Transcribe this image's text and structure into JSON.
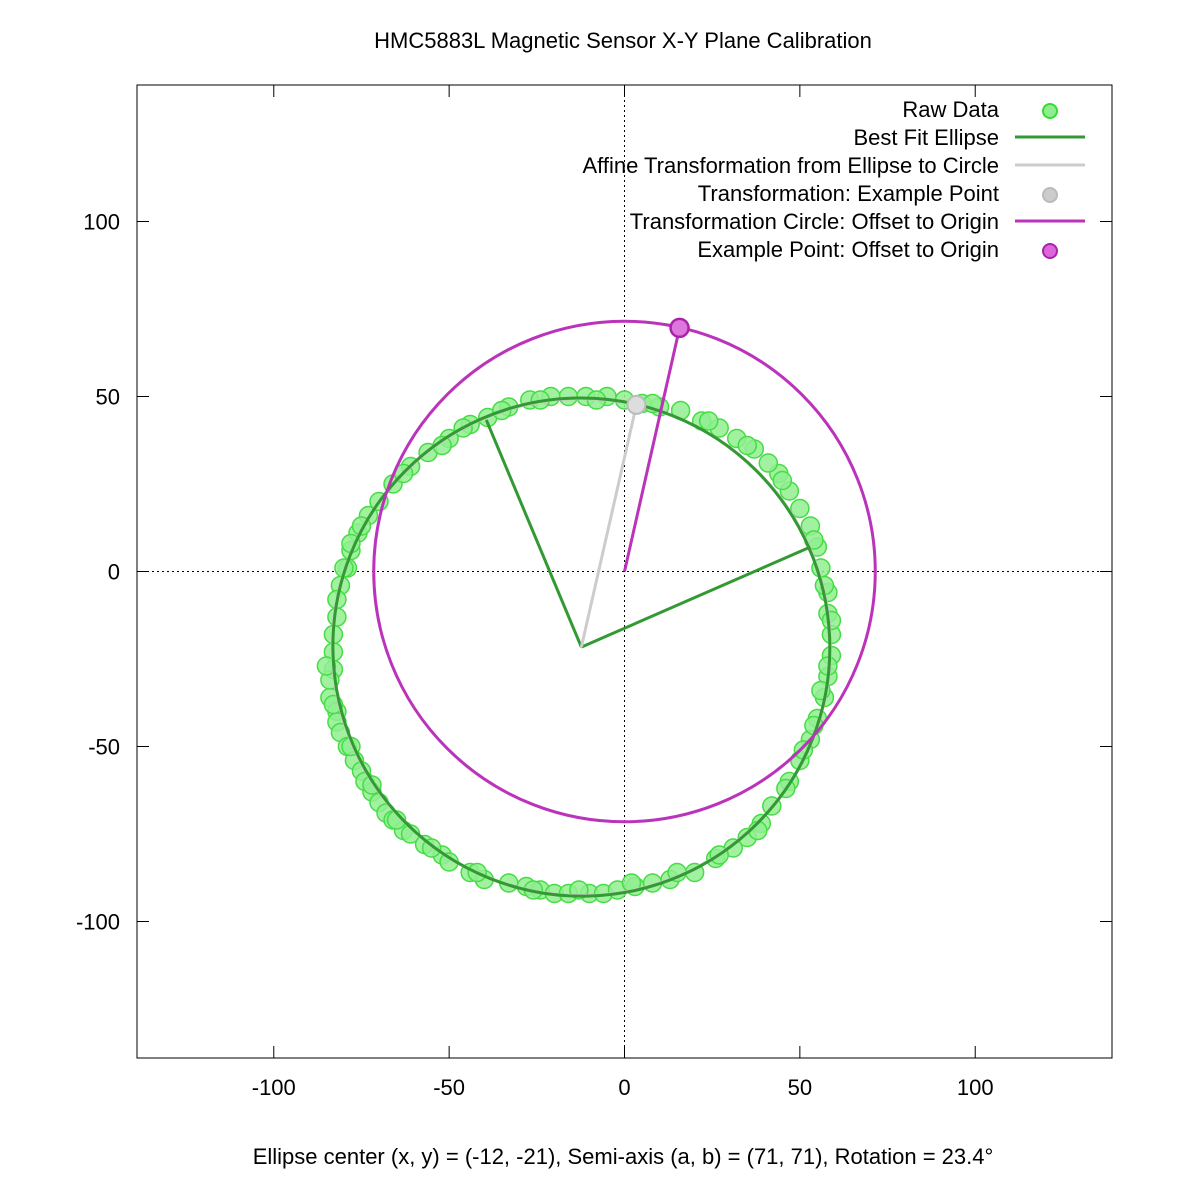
{
  "chart_data": {
    "type": "scatter",
    "title": "HMC5883L Magnetic Sensor X-Y Plane Calibration",
    "xlabel": "Ellipse center (x, y) = (-12, -21), Semi-axis (a, b) = (71, 71), Rotation = 23.4°",
    "ylabel": "",
    "xlim": [
      -139,
      139
    ],
    "ylim": [
      -139,
      139
    ],
    "xticks": [
      -100,
      -50,
      0,
      50,
      100
    ],
    "yticks": [
      -100,
      -50,
      0,
      50,
      100
    ],
    "xtick_labels": [
      "-100",
      "-50",
      "0",
      "50",
      "100"
    ],
    "ytick_labels": [
      "-100",
      "-50",
      "0",
      "50",
      "100"
    ],
    "zero_axes": true,
    "legend_position": "top-right",
    "legend": [
      {
        "label": "Raw Data",
        "kind": "point",
        "color": "#90ee90",
        "edge": "#33dd33"
      },
      {
        "label": "Best Fit Ellipse",
        "kind": "line",
        "color": "#339933"
      },
      {
        "label": "Affine Transformation from Ellipse to Circle",
        "kind": "line",
        "color": "#cccccc"
      },
      {
        "label": "Transformation: Example Point",
        "kind": "point",
        "color": "#cccccc",
        "edge": "#bbbbbb"
      },
      {
        "label": "Transformation Circle: Offset to Origin",
        "kind": "line",
        "color": "#bb33bb"
      },
      {
        "label": "Example Point: Offset to Origin",
        "kind": "point",
        "color": "#dd66dd",
        "edge": "#aa22aa"
      }
    ],
    "ellipse": {
      "cx": -12,
      "cy": -21,
      "rx": 71,
      "ry": 71,
      "rotation_deg": 23.4,
      "fit_center": [
        -12.3,
        -21.6
      ],
      "fit_axes": [
        70.8,
        71.2
      ],
      "semi_axis_end_a": [
        53,
        7
      ],
      "semi_axis_end_b": [
        -39.4,
        43.3
      ]
    },
    "transformation_line": {
      "from": [
        -12.3,
        -21.6
      ],
      "to": [
        3.4,
        47.6
      ]
    },
    "transformation_point": [
      3.4,
      47.6
    ],
    "offset_circle": {
      "cx": 0,
      "cy": 0,
      "r": 71.5
    },
    "offset_line": {
      "from": [
        0,
        0
      ],
      "to": [
        15.7,
        69.6
      ]
    },
    "offset_point": [
      15.7,
      69.6
    ],
    "raw_data": [
      [
        -83,
        -28
      ],
      [
        -84,
        -36
      ],
      [
        -82,
        -40
      ],
      [
        -82,
        -43
      ],
      [
        -81,
        -46
      ],
      [
        -79,
        -50
      ],
      [
        -77,
        -54
      ],
      [
        -75,
        -57
      ],
      [
        -74,
        -60
      ],
      [
        -72,
        -63
      ],
      [
        -70,
        -66
      ],
      [
        -68,
        -69
      ],
      [
        -66,
        -71
      ],
      [
        -63,
        -74
      ],
      [
        -61,
        -75
      ],
      [
        -57,
        -78
      ],
      [
        -52,
        -81
      ],
      [
        -50,
        -83
      ],
      [
        -44,
        -86
      ],
      [
        -40,
        -88
      ],
      [
        -33,
        -89
      ],
      [
        -28,
        -90
      ],
      [
        -24,
        -91
      ],
      [
        -20,
        -92
      ],
      [
        -16,
        -92
      ],
      [
        -10,
        -92
      ],
      [
        -6,
        -92
      ],
      [
        -2,
        -91
      ],
      [
        3,
        -90
      ],
      [
        8,
        -89
      ],
      [
        13,
        -88
      ],
      [
        20,
        -86
      ],
      [
        26,
        -82
      ],
      [
        31,
        -79
      ],
      [
        35,
        -76
      ],
      [
        39,
        -72
      ],
      [
        42,
        -67
      ],
      [
        47,
        -60
      ],
      [
        50,
        -54
      ],
      [
        53,
        -48
      ],
      [
        55,
        -42
      ],
      [
        57,
        -36
      ],
      [
        58,
        -30
      ],
      [
        59,
        -24
      ],
      [
        59,
        -18
      ],
      [
        58,
        -12
      ],
      [
        58,
        -6
      ],
      [
        56,
        1
      ],
      [
        55,
        7
      ],
      [
        53,
        13
      ],
      [
        50,
        18
      ],
      [
        47,
        23
      ],
      [
        44,
        28
      ],
      [
        41,
        31
      ],
      [
        37,
        35
      ],
      [
        32,
        38
      ],
      [
        27,
        41
      ],
      [
        22,
        43
      ],
      [
        16,
        46
      ],
      [
        10,
        47
      ],
      [
        5,
        48
      ],
      [
        0,
        49
      ],
      [
        -5,
        50
      ],
      [
        -11,
        50
      ],
      [
        -16,
        50
      ],
      [
        -21,
        50
      ],
      [
        -27,
        49
      ],
      [
        -33,
        47
      ],
      [
        -39,
        44
      ],
      [
        -44,
        42
      ],
      [
        -50,
        38
      ],
      [
        -56,
        34
      ],
      [
        -61,
        30
      ],
      [
        -66,
        25
      ],
      [
        -70,
        20
      ],
      [
        -73,
        16
      ],
      [
        -76,
        11
      ],
      [
        -78,
        6
      ],
      [
        -79,
        1
      ],
      [
        -81,
        -4
      ],
      [
        -82,
        -8
      ],
      [
        -82,
        -13
      ],
      [
        -83,
        -18
      ],
      [
        -83,
        -23
      ],
      [
        -80,
        1
      ],
      [
        -78,
        8
      ],
      [
        -75,
        13
      ],
      [
        -63,
        28
      ],
      [
        -52,
        36
      ],
      [
        -46,
        41
      ],
      [
        -35,
        46
      ],
      [
        -24,
        49
      ],
      [
        -8,
        49
      ],
      [
        8,
        48
      ],
      [
        24,
        43
      ],
      [
        35,
        36
      ],
      [
        45,
        26
      ],
      [
        54,
        9
      ],
      [
        57,
        -4
      ],
      [
        59,
        -14
      ],
      [
        58,
        -27
      ],
      [
        56,
        -34
      ],
      [
        54,
        -44
      ],
      [
        51,
        -51
      ],
      [
        46,
        -62
      ],
      [
        38,
        -74
      ],
      [
        27,
        -81
      ],
      [
        15,
        -86
      ],
      [
        2,
        -89
      ],
      [
        -13,
        -91
      ],
      [
        -26,
        -91
      ],
      [
        -42,
        -86
      ],
      [
        -55,
        -79
      ],
      [
        -65,
        -71
      ],
      [
        -72,
        -61
      ],
      [
        -78,
        -50
      ],
      [
        -83,
        -38
      ],
      [
        -84,
        -31
      ],
      [
        -85,
        -27
      ]
    ]
  }
}
